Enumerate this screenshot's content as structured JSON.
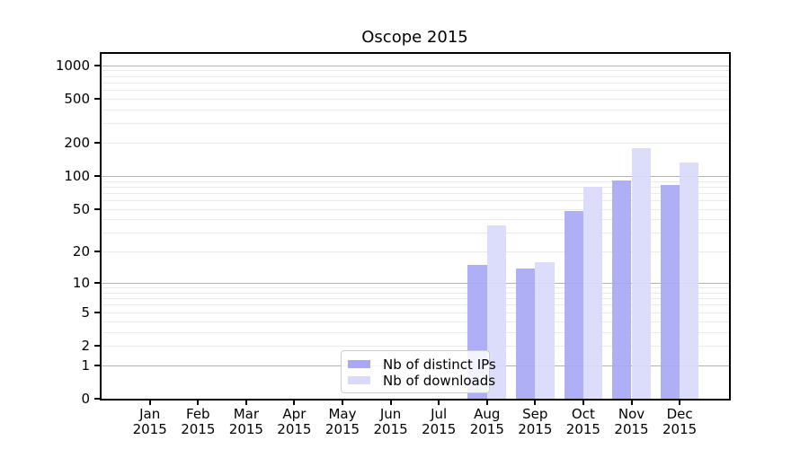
{
  "title": "Oscope 2015",
  "legend": {
    "items": [
      {
        "label": "Nb of distinct IPs",
        "color": "#a8a8f5"
      },
      {
        "label": "Nb of downloads",
        "color": "#d9d9fb"
      }
    ]
  },
  "chart_data": {
    "type": "bar",
    "title": "Oscope 2015",
    "categories": [
      "Jan 2015",
      "Feb 2015",
      "Mar 2015",
      "Apr 2015",
      "May 2015",
      "Jun 2015",
      "Jul 2015",
      "Aug 2015",
      "Sep 2015",
      "Oct 2015",
      "Nov 2015",
      "Dec 2015"
    ],
    "series": [
      {
        "name": "Nb of distinct IPs",
        "color": "#a8a8f5",
        "values": [
          0,
          0,
          0,
          0,
          0,
          0,
          0,
          15,
          14,
          48,
          91,
          83
        ]
      },
      {
        "name": "Nb of downloads",
        "color": "#d9d9fb",
        "values": [
          0,
          0,
          0,
          0,
          0,
          0,
          0,
          35,
          16,
          80,
          180,
          132
        ]
      }
    ],
    "yscale": "log1p",
    "y_ticks": [
      0,
      1,
      2,
      5,
      10,
      20,
      50,
      100,
      200,
      500,
      1000
    ],
    "y_minor_gridlines": [
      2,
      3,
      4,
      5,
      6,
      7,
      8,
      9,
      20,
      30,
      40,
      50,
      60,
      70,
      80,
      90,
      200,
      300,
      400,
      500,
      600,
      700,
      800,
      900
    ],
    "y_major_gridlines": [
      1,
      10,
      100,
      1000
    ],
    "ylim": [
      0,
      1267
    ],
    "xlabel": "",
    "ylabel": "",
    "grid": true,
    "legend_position": "lower center"
  }
}
